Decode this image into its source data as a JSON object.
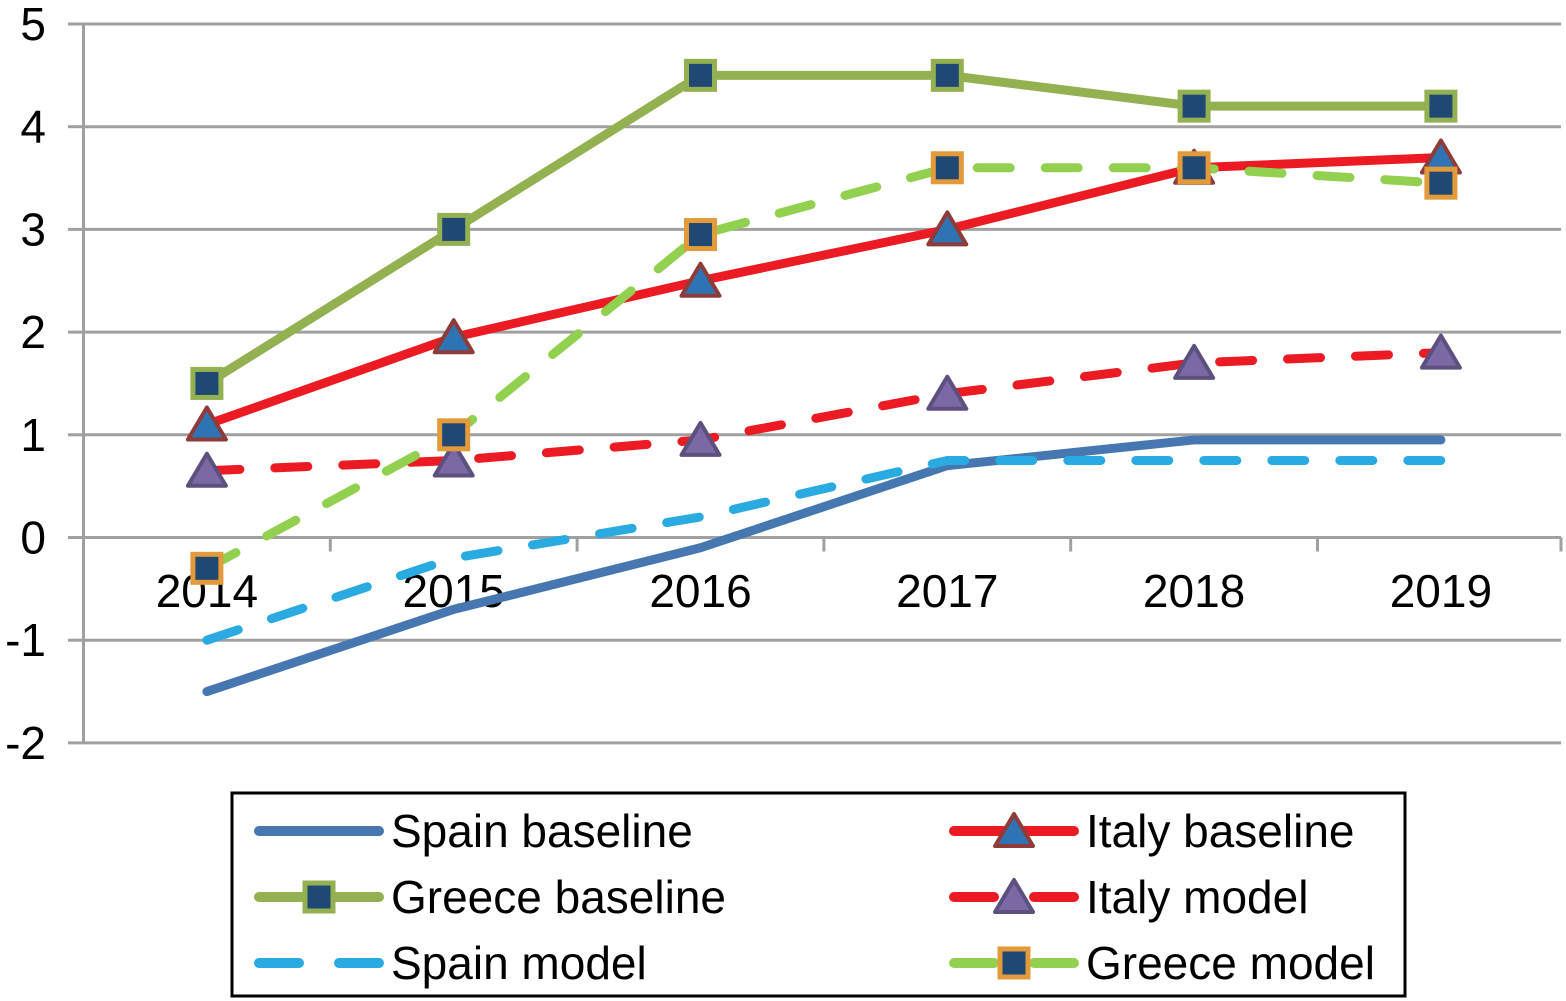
{
  "chart_data": {
    "type": "line",
    "title": "",
    "xlabel": "",
    "ylabel": "",
    "categories": [
      "2014",
      "2015",
      "2016",
      "2017",
      "2018",
      "2019"
    ],
    "y_axis": {
      "min": -2,
      "max": 5,
      "tick_step": 1,
      "tick_values": [
        5,
        4,
        3,
        2,
        1,
        0,
        -1,
        -2
      ],
      "tick_labels": [
        "5",
        "4",
        "3",
        "2",
        "1",
        "0",
        "-1",
        "-2"
      ]
    },
    "grid": "horizontal-gridlines-on",
    "legend_position": "bottom-two-columns",
    "series": [
      {
        "name": "Spain baseline",
        "line": "solid",
        "color": "#4777B0",
        "marker": "none",
        "values": [
          -1.5,
          -0.7,
          -0.1,
          0.7,
          0.95,
          0.95
        ]
      },
      {
        "name": "Italy baseline",
        "line": "solid",
        "color": "#EC1B23",
        "marker": "triangle",
        "marker_fill": "#2E74B5",
        "marker_border": "#8E3B39",
        "values": [
          1.1,
          1.95,
          2.5,
          3.0,
          3.6,
          3.7
        ]
      },
      {
        "name": "Greece baseline",
        "line": "solid",
        "color": "#94B152",
        "marker": "square",
        "marker_fill": "#1F4873",
        "marker_border": "#94B152",
        "values": [
          1.5,
          3.0,
          4.5,
          4.5,
          4.2,
          4.2
        ]
      },
      {
        "name": "Italy model",
        "line": "dashed",
        "color": "#EC1B23",
        "marker": "triangle",
        "marker_fill": "#7A69A5",
        "marker_border": "#5D4F7E",
        "values": [
          0.65,
          0.75,
          0.95,
          1.4,
          1.7,
          1.8
        ]
      },
      {
        "name": "Spain model",
        "line": "dashed",
        "color": "#29ABE2",
        "marker": "none",
        "values": [
          -1.0,
          -0.2,
          0.2,
          0.75,
          0.75,
          0.75
        ]
      },
      {
        "name": "Greece model",
        "line": "dashed",
        "color": "#92D050",
        "marker": "square",
        "marker_fill": "#1F4873",
        "marker_border": "#E39A3B",
        "values": [
          -0.3,
          1.0,
          2.95,
          3.6,
          3.6,
          3.45
        ]
      }
    ],
    "legend_columns": [
      [
        "Spain baseline",
        "Greece baseline",
        "Spain model"
      ],
      [
        "Italy baseline",
        "Italy model",
        "Greece model"
      ]
    ]
  },
  "colors": {
    "background": "#FFFFFF",
    "gridline": "#A0A0A0",
    "axis": "#A0A0A0",
    "label_text": "#000000",
    "legend_border": "#000000",
    "legend_fill": "#FFFFFF"
  }
}
